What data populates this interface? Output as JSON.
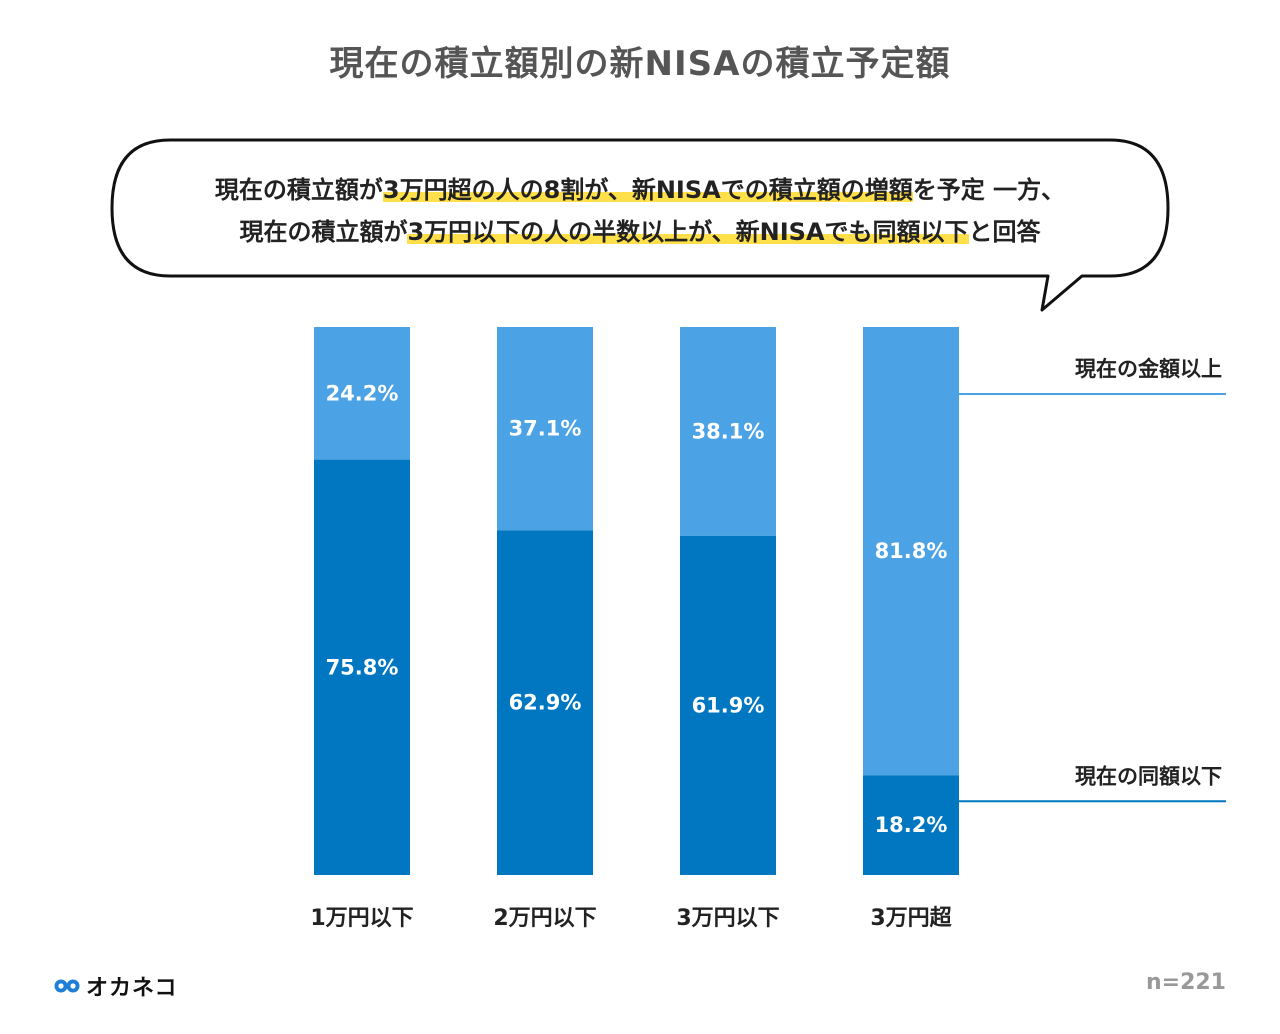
{
  "title": "現在の積立額別の新NISAの積立予定額",
  "callout": {
    "line1_a": "現在の積立額が",
    "line1_hl": "3万円超の人の8割が、新NISAでの積立額の増額",
    "line1_b": "を予定 一方、",
    "line2_a": "現在の積立額が",
    "line2_hl": "3万円以下の人の半数以上が、新NISAでも同額以下",
    "line2_b": "と回答"
  },
  "chart_data": {
    "type": "bar",
    "stacked": true,
    "categories": [
      "1万円以下",
      "2万円以下",
      "3万円以下",
      "3万円超"
    ],
    "series": [
      {
        "name": "現在の同額以下",
        "values": [
          75.8,
          62.9,
          61.9,
          18.2
        ],
        "color": "#0077c0"
      },
      {
        "name": "現在の金額以上",
        "values": [
          24.2,
          37.1,
          38.1,
          81.8
        ],
        "color": "#4ba2e4"
      }
    ],
    "labels_bottom": [
      "75.8%",
      "62.9%",
      "61.9%",
      "18.2%"
    ],
    "labels_top": [
      "24.2%",
      "37.1%",
      "38.1%",
      "81.8%"
    ],
    "ylim": [
      0,
      100
    ],
    "legend": [
      "現在の金額以上",
      "現在の同額以下"
    ]
  },
  "footer": {
    "brand": "オカネコ",
    "n": "n=221"
  },
  "colors": {
    "dark": "#0077c0",
    "light": "#4ba2e4",
    "highlight": "#ffe04a"
  }
}
